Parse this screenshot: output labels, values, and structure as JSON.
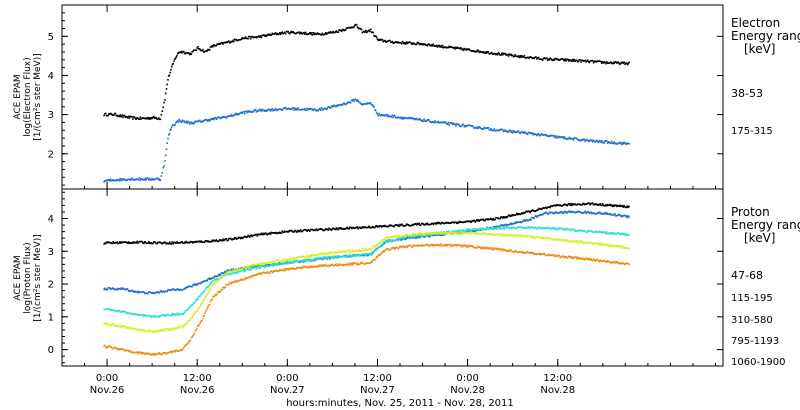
{
  "chart_data": [
    {
      "type": "scatter",
      "panel": "electron",
      "ylabel_lines": [
        "ACE EPAM",
        "log(Electron Flux)",
        "[1/(cm²s ster MeV)]"
      ],
      "legend_title": [
        "Electron",
        "Energy range",
        "[keV]"
      ],
      "ylim": [
        1.1,
        5.8
      ],
      "yticks": [
        "2",
        "3",
        "4",
        "5"
      ],
      "ytick_values": [
        2,
        3,
        4,
        5
      ],
      "series": [
        {
          "name": "38-53",
          "color": "#000000",
          "points": [
            [
              -0.5,
              3.0
            ],
            [
              1.0,
              3.0
            ],
            [
              2.0,
              2.95
            ],
            [
              3.0,
              2.92
            ],
            [
              4.0,
              2.9
            ],
            [
              5.0,
              2.9
            ],
            [
              6.0,
              2.92
            ],
            [
              7.0,
              2.9
            ],
            [
              7.6,
              3.4
            ],
            [
              8.0,
              3.9
            ],
            [
              8.5,
              4.2
            ],
            [
              9.0,
              4.45
            ],
            [
              9.5,
              4.6
            ],
            [
              10.0,
              4.6
            ],
            [
              11.0,
              4.55
            ],
            [
              12.0,
              4.7
            ],
            [
              13.0,
              4.6
            ],
            [
              14.0,
              4.75
            ],
            [
              16.0,
              4.85
            ],
            [
              18.0,
              4.95
            ],
            [
              20.0,
              4.98
            ],
            [
              22.0,
              5.05
            ],
            [
              24.0,
              5.1
            ],
            [
              26.0,
              5.08
            ],
            [
              28.0,
              5.05
            ],
            [
              30.0,
              5.1
            ],
            [
              32.0,
              5.2
            ],
            [
              33.0,
              5.28
            ],
            [
              34.0,
              5.1
            ],
            [
              35.0,
              5.15
            ],
            [
              36.0,
              4.9
            ],
            [
              38.0,
              4.85
            ],
            [
              42.0,
              4.8
            ],
            [
              46.0,
              4.7
            ],
            [
              50.0,
              4.6
            ],
            [
              54.0,
              4.5
            ],
            [
              58.0,
              4.42
            ],
            [
              62.0,
              4.38
            ],
            [
              66.0,
              4.33
            ],
            [
              69.5,
              4.3
            ]
          ]
        },
        {
          "name": "175-315",
          "color": "#1a70d2",
          "points": [
            [
              -0.5,
              1.3
            ],
            [
              1.0,
              1.33
            ],
            [
              3.0,
              1.35
            ],
            [
              5.0,
              1.35
            ],
            [
              7.0,
              1.35
            ],
            [
              7.6,
              1.8
            ],
            [
              8.0,
              2.4
            ],
            [
              8.5,
              2.7
            ],
            [
              9.5,
              2.85
            ],
            [
              11.0,
              2.78
            ],
            [
              13.0,
              2.85
            ],
            [
              16.0,
              2.95
            ],
            [
              18.0,
              3.05
            ],
            [
              20.0,
              3.1
            ],
            [
              24.0,
              3.15
            ],
            [
              28.0,
              3.12
            ],
            [
              30.0,
              3.2
            ],
            [
              32.0,
              3.3
            ],
            [
              33.0,
              3.38
            ],
            [
              34.0,
              3.25
            ],
            [
              35.0,
              3.3
            ],
            [
              36.0,
              3.0
            ],
            [
              40.0,
              2.9
            ],
            [
              44.0,
              2.8
            ],
            [
              48.0,
              2.7
            ],
            [
              52.0,
              2.6
            ],
            [
              56.0,
              2.52
            ],
            [
              60.0,
              2.42
            ],
            [
              64.0,
              2.33
            ],
            [
              69.5,
              2.25
            ]
          ]
        }
      ]
    },
    {
      "type": "scatter",
      "panel": "proton",
      "ylabel_lines": [
        "ACE EPAM",
        "log(Proton Flux)",
        "[1/(cm²s ster MeV)]"
      ],
      "legend_title": [
        "Proton",
        "Energy range",
        "[keV]"
      ],
      "ylim": [
        -0.5,
        4.9
      ],
      "yticks": [
        "0",
        "1",
        "2",
        "3",
        "4"
      ],
      "ytick_values": [
        0,
        1,
        2,
        3,
        4
      ],
      "series": [
        {
          "name": "47-68",
          "color": "#000000",
          "points": [
            [
              -0.5,
              3.25
            ],
            [
              4.0,
              3.27
            ],
            [
              8.0,
              3.25
            ],
            [
              12.0,
              3.28
            ],
            [
              16.0,
              3.35
            ],
            [
              20.0,
              3.5
            ],
            [
              24.0,
              3.6
            ],
            [
              28.0,
              3.65
            ],
            [
              32.0,
              3.7
            ],
            [
              36.0,
              3.75
            ],
            [
              40.0,
              3.8
            ],
            [
              44.0,
              3.85
            ],
            [
              48.0,
              3.9
            ],
            [
              52.0,
              4.0
            ],
            [
              56.0,
              4.2
            ],
            [
              60.0,
              4.4
            ],
            [
              64.0,
              4.45
            ],
            [
              69.5,
              4.35
            ]
          ]
        },
        {
          "name": "115-195",
          "color": "#1a70d2",
          "points": [
            [
              -0.5,
              1.85
            ],
            [
              2.0,
              1.85
            ],
            [
              4.0,
              1.75
            ],
            [
              6.0,
              1.72
            ],
            [
              8.0,
              1.8
            ],
            [
              10.0,
              1.85
            ],
            [
              12.0,
              2.0
            ],
            [
              14.0,
              2.2
            ],
            [
              16.0,
              2.4
            ],
            [
              20.0,
              2.55
            ],
            [
              24.0,
              2.65
            ],
            [
              28.0,
              2.75
            ],
            [
              32.0,
              2.85
            ],
            [
              35.0,
              2.9
            ],
            [
              37.0,
              3.3
            ],
            [
              40.0,
              3.4
            ],
            [
              44.0,
              3.5
            ],
            [
              48.0,
              3.6
            ],
            [
              52.0,
              3.75
            ],
            [
              56.0,
              3.95
            ],
            [
              58.0,
              4.15
            ],
            [
              62.0,
              4.2
            ],
            [
              66.0,
              4.15
            ],
            [
              69.5,
              4.05
            ]
          ]
        },
        {
          "name": "310-580",
          "color": "#2ee0d0",
          "points": [
            [
              -0.5,
              1.25
            ],
            [
              2.0,
              1.15
            ],
            [
              4.0,
              1.05
            ],
            [
              6.0,
              1.0
            ],
            [
              8.0,
              1.05
            ],
            [
              10.0,
              1.1
            ],
            [
              11.0,
              1.3
            ],
            [
              12.5,
              1.7
            ],
            [
              14.0,
              2.1
            ],
            [
              16.0,
              2.3
            ],
            [
              20.0,
              2.5
            ],
            [
              24.0,
              2.65
            ],
            [
              28.0,
              2.78
            ],
            [
              32.0,
              2.85
            ],
            [
              35.0,
              2.9
            ],
            [
              37.0,
              3.3
            ],
            [
              40.0,
              3.45
            ],
            [
              44.0,
              3.55
            ],
            [
              48.0,
              3.65
            ],
            [
              52.0,
              3.7
            ],
            [
              56.0,
              3.72
            ],
            [
              60.0,
              3.68
            ],
            [
              64.0,
              3.6
            ],
            [
              69.5,
              3.5
            ]
          ]
        },
        {
          "name": "795-1193",
          "color": "#d8ef1a",
          "points": [
            [
              -0.5,
              0.8
            ],
            [
              2.0,
              0.7
            ],
            [
              4.0,
              0.6
            ],
            [
              6.0,
              0.55
            ],
            [
              8.0,
              0.6
            ],
            [
              10.0,
              0.7
            ],
            [
              11.0,
              0.9
            ],
            [
              12.5,
              1.4
            ],
            [
              14.0,
              2.0
            ],
            [
              16.0,
              2.35
            ],
            [
              20.0,
              2.6
            ],
            [
              24.0,
              2.75
            ],
            [
              28.0,
              2.9
            ],
            [
              32.0,
              3.0
            ],
            [
              35.0,
              3.05
            ],
            [
              37.0,
              3.4
            ],
            [
              40.0,
              3.5
            ],
            [
              44.0,
              3.55
            ],
            [
              48.0,
              3.55
            ],
            [
              52.0,
              3.5
            ],
            [
              56.0,
              3.45
            ],
            [
              60.0,
              3.35
            ],
            [
              64.0,
              3.25
            ],
            [
              69.5,
              3.1
            ]
          ]
        },
        {
          "name": "1060-1900",
          "color": "#f08a10",
          "points": [
            [
              -0.5,
              0.1
            ],
            [
              2.0,
              0.0
            ],
            [
              4.0,
              -0.1
            ],
            [
              6.0,
              -0.15
            ],
            [
              8.0,
              -0.1
            ],
            [
              10.0,
              0.0
            ],
            [
              11.0,
              0.3
            ],
            [
              12.5,
              0.9
            ],
            [
              14.0,
              1.6
            ],
            [
              16.0,
              2.0
            ],
            [
              20.0,
              2.3
            ],
            [
              24.0,
              2.45
            ],
            [
              28.0,
              2.55
            ],
            [
              32.0,
              2.6
            ],
            [
              35.0,
              2.65
            ],
            [
              37.0,
              3.05
            ],
            [
              40.0,
              3.15
            ],
            [
              44.0,
              3.2
            ],
            [
              48.0,
              3.15
            ],
            [
              52.0,
              3.05
            ],
            [
              56.0,
              2.95
            ],
            [
              60.0,
              2.85
            ],
            [
              64.0,
              2.75
            ],
            [
              69.5,
              2.6
            ]
          ]
        }
      ]
    }
  ],
  "x_axis": {
    "xlim": [
      -6.0,
      82.0
    ],
    "major_ticks": [
      0,
      12,
      24,
      36,
      48,
      60
    ],
    "tick_time_labels": [
      "0:00",
      "12:00",
      "0:00",
      "12:00",
      "0:00",
      "12:00"
    ],
    "tick_date_labels": [
      "Nov.26",
      "Nov.26",
      "Nov.27",
      "Nov.27",
      "Nov.28",
      "Nov.28"
    ],
    "minor_tick_step": 3,
    "label": "hours:minutes, Nov. 25, 2011 - Nov. 28, 2011"
  }
}
